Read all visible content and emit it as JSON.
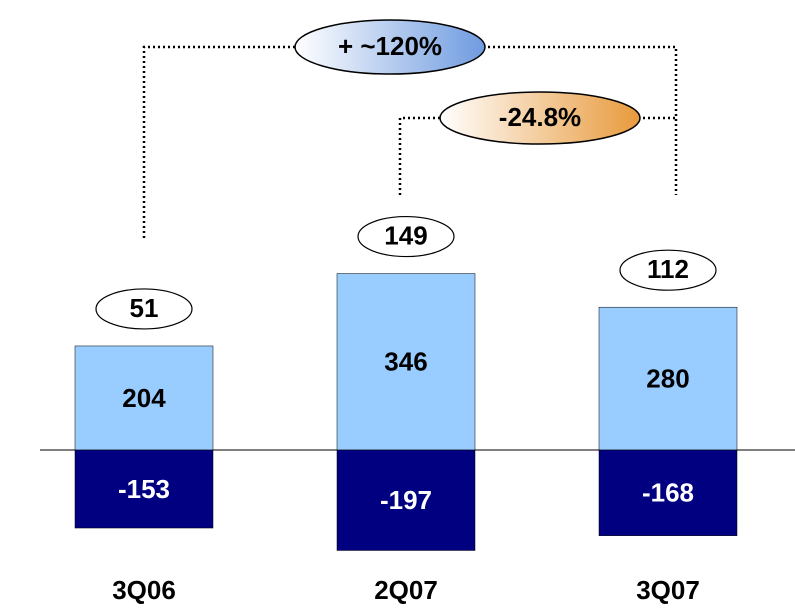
{
  "chart_data": {
    "type": "bar",
    "stacked": true,
    "categories": [
      "3Q06",
      "2Q07",
      "3Q07"
    ],
    "series": [
      {
        "color": "#99ccff",
        "values": [
          204,
          346,
          280
        ]
      },
      {
        "color": "#000080",
        "values": [
          -153,
          -197,
          -168
        ]
      }
    ],
    "totals": [
      51,
      149,
      112
    ],
    "annotations": [
      "+ ~120%",
      "-24.8%"
    ]
  }
}
